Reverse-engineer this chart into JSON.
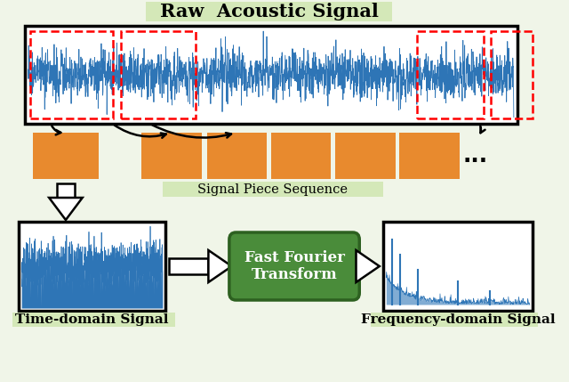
{
  "title": "Raw  Acoustic Signal",
  "signal_piece_label": "Signal Piece Sequence",
  "time_domain_label": "Time-domain Signal",
  "freq_domain_label": "Frequency-domain Signal",
  "fft_box_label": "Fast Fourier\nTransform",
  "bg_color": "#f0f5e8",
  "signal_color": "#2e75b6",
  "orange_color": "#e88a2e",
  "green_box_color": "#4a8c3a",
  "green_box_edge": "#2d6020",
  "dots_text": "...",
  "title_fontsize": 15,
  "label_fontsize": 11,
  "fft_fontsize": 12,
  "title_bg_color": "#d4e8b8",
  "sps_bg_color": "#d4e8b8",
  "label_bg_color": "#d4e8b8"
}
